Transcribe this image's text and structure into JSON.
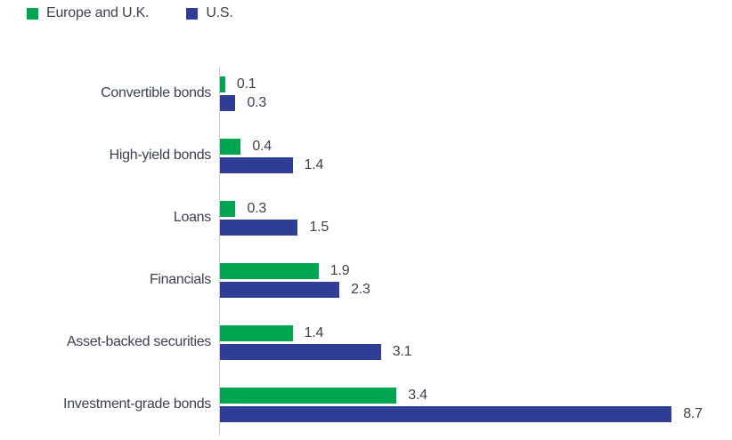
{
  "chart_data": {
    "type": "bar",
    "orientation": "horizontal",
    "title": "",
    "categories": [
      "Convertible bonds",
      "High-yield bonds",
      "Loans",
      "Financials",
      "Asset-backed securities",
      "Investment-grade bonds"
    ],
    "series": [
      {
        "name": "Europe and U.K.",
        "color": "#00A551",
        "values": [
          0.1,
          0.4,
          0.3,
          1.9,
          1.4,
          3.4
        ]
      },
      {
        "name": "U.S.",
        "color": "#2F3D96",
        "values": [
          0.3,
          1.4,
          1.5,
          2.3,
          3.1,
          8.7
        ]
      }
    ],
    "value_labels": true,
    "xlim": [
      0,
      9
    ],
    "grid": false,
    "legend_position": "top-left",
    "axis_color": "#C9C9C9",
    "text_color": "#3A4150"
  }
}
